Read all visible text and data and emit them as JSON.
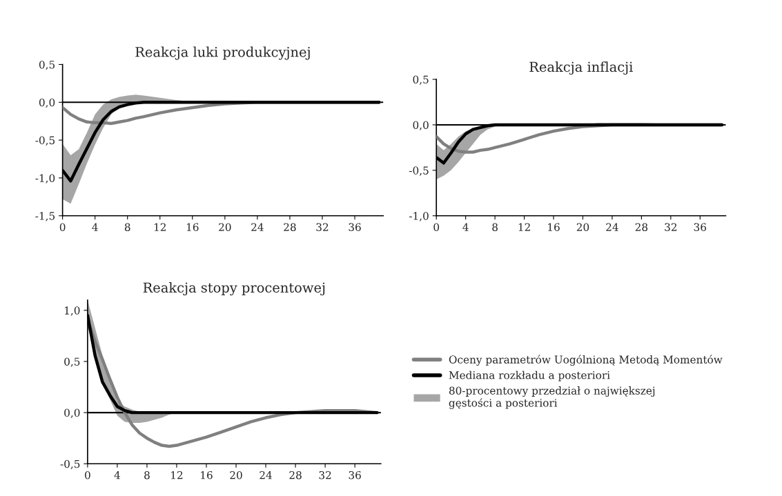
{
  "chart_data": [
    {
      "type": "line",
      "title": "Reakcja luki produkcyjnej",
      "x": [
        0,
        1,
        2,
        3,
        4,
        5,
        6,
        7,
        8,
        9,
        10,
        12,
        14,
        16,
        18,
        20,
        22,
        24,
        28,
        32,
        36,
        39
      ],
      "xlim": [
        0,
        39.5
      ],
      "xticks": [
        0,
        4,
        8,
        12,
        16,
        20,
        24,
        28,
        32,
        36
      ],
      "ylim": [
        -1.5,
        0.5
      ],
      "yticks": [
        {
          "value": -1.5,
          "label": "-1,5"
        },
        {
          "value": -1.0,
          "label": "-1,0"
        },
        {
          "value": -0.5,
          "label": "-0,5"
        },
        {
          "value": 0.0,
          "label": "0,0"
        },
        {
          "value": 0.5,
          "label": "0,5"
        }
      ],
      "ref_lines": [
        {
          "axis": "y",
          "value": 0,
          "color": "#000000"
        }
      ],
      "grid": false,
      "legend": false,
      "series": [
        {
          "color": "#808080",
          "values": [
            -0.07,
            -0.16,
            -0.22,
            -0.26,
            -0.27,
            -0.27,
            -0.28,
            -0.26,
            -0.24,
            -0.21,
            -0.19,
            -0.14,
            -0.1,
            -0.07,
            -0.04,
            -0.02,
            -0.01,
            0,
            0,
            0,
            0,
            0
          ]
        },
        {
          "color": "#000000",
          "values": [
            -0.9,
            -1.04,
            -0.82,
            -0.61,
            -0.4,
            -0.23,
            -0.12,
            -0.06,
            -0.03,
            -0.01,
            0,
            0,
            0,
            0,
            0,
            0,
            0,
            0,
            0,
            0,
            0,
            0
          ],
          "lower": [
            -1.28,
            -1.34,
            -1.08,
            -0.81,
            -0.56,
            -0.34,
            -0.16,
            -0.07,
            -0.03,
            -0.01,
            -0.01,
            0,
            0,
            0,
            0,
            0,
            0,
            0,
            0,
            0,
            0,
            0
          ],
          "upper": [
            -0.55,
            -0.7,
            -0.62,
            -0.4,
            -0.16,
            -0.03,
            0.04,
            0.07,
            0.09,
            0.1,
            0.09,
            0.06,
            0.03,
            0.01,
            0.0,
            0.0,
            0.01,
            0.02,
            0.02,
            0.02,
            0.02,
            0.0
          ]
        }
      ]
    },
    {
      "type": "line",
      "title": "Reakcja inflacji",
      "x": [
        0,
        1,
        2,
        3,
        4,
        5,
        6,
        7,
        8,
        10,
        12,
        14,
        16,
        18,
        20,
        22,
        24,
        28,
        32,
        36,
        39
      ],
      "xlim": [
        0,
        39.5
      ],
      "xticks": [
        0,
        4,
        8,
        12,
        16,
        20,
        24,
        28,
        32,
        36
      ],
      "ylim": [
        -1.0,
        0.5
      ],
      "yticks": [
        {
          "value": -1.0,
          "label": "-1,0"
        },
        {
          "value": -0.5,
          "label": "-0,5"
        },
        {
          "value": 0.0,
          "label": "0,0"
        },
        {
          "value": 0.5,
          "label": "0,5"
        }
      ],
      "ref_lines": [
        {
          "axis": "y",
          "value": 0,
          "color": "#000000"
        }
      ],
      "grid": false,
      "legend": false,
      "series": [
        {
          "color": "#808080",
          "values": [
            -0.13,
            -0.21,
            -0.26,
            -0.29,
            -0.3,
            -0.3,
            -0.28,
            -0.27,
            -0.25,
            -0.21,
            -0.16,
            -0.11,
            -0.07,
            -0.04,
            -0.02,
            -0.01,
            0,
            0,
            0,
            0,
            0
          ]
        },
        {
          "color": "#000000",
          "values": [
            -0.36,
            -0.42,
            -0.31,
            -0.19,
            -0.1,
            -0.05,
            -0.03,
            -0.01,
            0,
            0,
            0,
            0,
            0,
            0,
            0,
            0,
            0,
            0,
            0,
            0,
            0
          ],
          "lower": [
            -0.6,
            -0.56,
            -0.5,
            -0.41,
            -0.31,
            -0.21,
            -0.11,
            -0.05,
            -0.02,
            0,
            0,
            0,
            0,
            0,
            0,
            0,
            0,
            0,
            0,
            0,
            0
          ],
          "upper": [
            -0.21,
            -0.28,
            -0.21,
            -0.13,
            -0.07,
            -0.04,
            -0.02,
            -0.01,
            0,
            0,
            0,
            0,
            0,
            0,
            0,
            0.02,
            0.02,
            0.02,
            0.01,
            0.01,
            0
          ]
        }
      ]
    },
    {
      "type": "line",
      "title": "Reakcja stopy procentowej",
      "x": [
        0,
        1,
        2,
        3,
        4,
        5,
        6,
        7,
        8,
        9,
        10,
        11,
        12,
        14,
        16,
        18,
        20,
        22,
        24,
        26,
        28,
        30,
        32,
        36,
        39
      ],
      "xlim": [
        0,
        39.5
      ],
      "xticks": [
        0,
        4,
        8,
        12,
        16,
        20,
        24,
        28,
        32,
        36
      ],
      "ylim": [
        -0.5,
        1.1
      ],
      "yticks": [
        {
          "value": -0.5,
          "label": "-0,5"
        },
        {
          "value": 0.0,
          "label": "0,0"
        },
        {
          "value": 0.5,
          "label": "0,5"
        },
        {
          "value": 1.0,
          "label": "1,0"
        }
      ],
      "ref_lines": [
        {
          "axis": "y",
          "value": 0,
          "color": "#000000"
        }
      ],
      "grid": false,
      "legend": "right",
      "annotations": [
        "80-procentowy przedział o największej\ngęstości a posteriori"
      ],
      "series": [
        {
          "name": "Oceny parametrów Uogólnioną Metodą Momentów",
          "color": "#808080",
          "values": [
            0.91,
            0.7,
            0.52,
            0.33,
            0.15,
            0.0,
            -0.12,
            -0.2,
            -0.25,
            -0.29,
            -0.32,
            -0.33,
            -0.32,
            -0.28,
            -0.24,
            -0.19,
            -0.14,
            -0.09,
            -0.05,
            -0.02,
            0,
            0.01,
            0.02,
            0.02,
            0
          ]
        },
        {
          "name": "Mediana rozkładu a posteriori",
          "color": "#000000",
          "values": [
            0.95,
            0.56,
            0.3,
            0.17,
            0.06,
            0.02,
            0,
            0,
            0,
            0,
            0,
            0,
            0,
            0,
            0,
            0,
            0,
            0,
            0,
            0,
            0,
            0,
            0,
            0,
            0
          ],
          "lower": [
            0.87,
            0.56,
            0.31,
            0.13,
            -0.03,
            -0.09,
            -0.1,
            -0.1,
            -0.09,
            -0.07,
            -0.05,
            -0.02,
            0,
            0,
            0,
            0,
            0,
            0,
            0,
            0,
            0,
            0,
            0,
            0,
            0
          ],
          "upper": [
            1.1,
            0.83,
            0.56,
            0.35,
            0.11,
            0.06,
            0.03,
            0.01,
            0,
            0,
            0,
            0,
            0,
            0,
            0,
            0,
            0,
            0,
            0,
            0,
            0,
            0.01,
            0.02,
            0.02,
            0
          ]
        }
      ]
    }
  ]
}
